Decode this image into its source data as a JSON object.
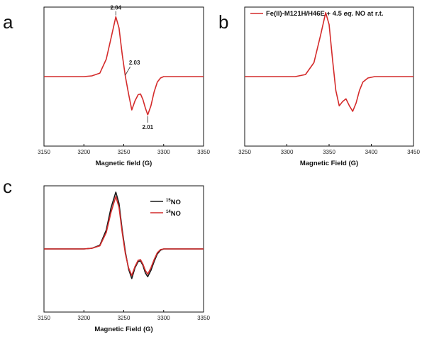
{
  "colors": {
    "red": "#d42b2b",
    "black": "#1a1a1a",
    "frame": "#111111"
  },
  "chart_data": [
    {
      "panel": "a",
      "type": "line",
      "xlabel": "Magnetic field (G)",
      "ylabel": "",
      "xlim": [
        3150,
        3350
      ],
      "ylim": [
        -1,
        1
      ],
      "xticks": [
        3150,
        3200,
        3250,
        3300,
        3350
      ],
      "annotations": [
        {
          "text": "2.04",
          "x": 3240,
          "y": 0.86
        },
        {
          "text": "2.03",
          "x": 3251,
          "y": 0.01
        },
        {
          "text": "2.01",
          "x": 3280,
          "y": -0.55
        }
      ],
      "series": [
        {
          "color": "#d42b2b",
          "x": [
            3150,
            3200,
            3210,
            3220,
            3228,
            3234,
            3240,
            3244,
            3248,
            3252,
            3256,
            3260,
            3264,
            3268,
            3271,
            3274,
            3277,
            3280,
            3284,
            3288,
            3292,
            3296,
            3300,
            3310,
            3330,
            3350
          ],
          "y": [
            0,
            0,
            0.01,
            0.05,
            0.25,
            0.55,
            0.86,
            0.7,
            0.32,
            0.0,
            -0.25,
            -0.48,
            -0.35,
            -0.26,
            -0.25,
            -0.33,
            -0.45,
            -0.55,
            -0.42,
            -0.22,
            -0.08,
            -0.02,
            0,
            0,
            0,
            0
          ]
        }
      ]
    },
    {
      "panel": "b",
      "type": "line",
      "xlabel": "Magnetic Field (G)",
      "ylabel": "",
      "xlim": [
        3250,
        3450
      ],
      "ylim": [
        -1,
        1
      ],
      "xticks": [
        3250,
        3300,
        3350,
        3400,
        3450
      ],
      "legend": {
        "position": "top",
        "entries": [
          {
            "name": "Fe(II)-M121H/H46E + 4.5 eq. NO at r.t.",
            "color": "#d42b2b"
          }
        ]
      },
      "series": [
        {
          "name": "Fe(II)-M121H/H46E + 4.5 eq. NO at r.t.",
          "color": "#d42b2b",
          "x": [
            3250,
            3310,
            3322,
            3332,
            3340,
            3346,
            3350,
            3354,
            3358,
            3362,
            3366,
            3370,
            3374,
            3378,
            3382,
            3386,
            3390,
            3396,
            3404,
            3420,
            3450
          ],
          "y": [
            0,
            0,
            0.03,
            0.2,
            0.6,
            0.92,
            0.75,
            0.25,
            -0.2,
            -0.42,
            -0.36,
            -0.32,
            -0.42,
            -0.5,
            -0.38,
            -0.2,
            -0.08,
            -0.02,
            0,
            0,
            0
          ]
        }
      ]
    },
    {
      "panel": "c",
      "type": "line",
      "xlabel": "Magnetic Field (G)",
      "ylabel": "",
      "xlim": [
        3150,
        3350
      ],
      "ylim": [
        -1,
        1
      ],
      "xticks": [
        3150,
        3200,
        3250,
        3300,
        3350
      ],
      "legend": {
        "position": "top-right",
        "entries": [
          {
            "mass": "15",
            "name": "NO",
            "color": "#1a1a1a"
          },
          {
            "mass": "14",
            "name": "NO",
            "color": "#d42b2b"
          }
        ]
      },
      "series": [
        {
          "name": "15NO",
          "color": "#1a1a1a",
          "x": [
            3150,
            3200,
            3210,
            3220,
            3228,
            3234,
            3240,
            3244,
            3248,
            3252,
            3256,
            3260,
            3264,
            3268,
            3271,
            3274,
            3277,
            3280,
            3284,
            3288,
            3292,
            3296,
            3300,
            3310,
            3330,
            3350
          ],
          "y": [
            0,
            0,
            0.01,
            0.06,
            0.3,
            0.65,
            0.9,
            0.72,
            0.3,
            -0.05,
            -0.32,
            -0.47,
            -0.3,
            -0.2,
            -0.19,
            -0.26,
            -0.38,
            -0.44,
            -0.34,
            -0.2,
            -0.08,
            -0.02,
            0,
            0,
            0,
            0
          ]
        },
        {
          "name": "14NO",
          "color": "#d42b2b",
          "x": [
            3150,
            3200,
            3210,
            3220,
            3228,
            3234,
            3240,
            3244,
            3248,
            3252,
            3256,
            3260,
            3264,
            3268,
            3271,
            3274,
            3277,
            3280,
            3284,
            3288,
            3292,
            3296,
            3300,
            3310,
            3330,
            3350
          ],
          "y": [
            0,
            0,
            0.01,
            0.05,
            0.26,
            0.58,
            0.83,
            0.66,
            0.26,
            -0.08,
            -0.3,
            -0.42,
            -0.28,
            -0.18,
            -0.17,
            -0.24,
            -0.34,
            -0.4,
            -0.3,
            -0.17,
            -0.06,
            -0.01,
            0,
            0,
            0,
            0
          ]
        }
      ]
    }
  ]
}
